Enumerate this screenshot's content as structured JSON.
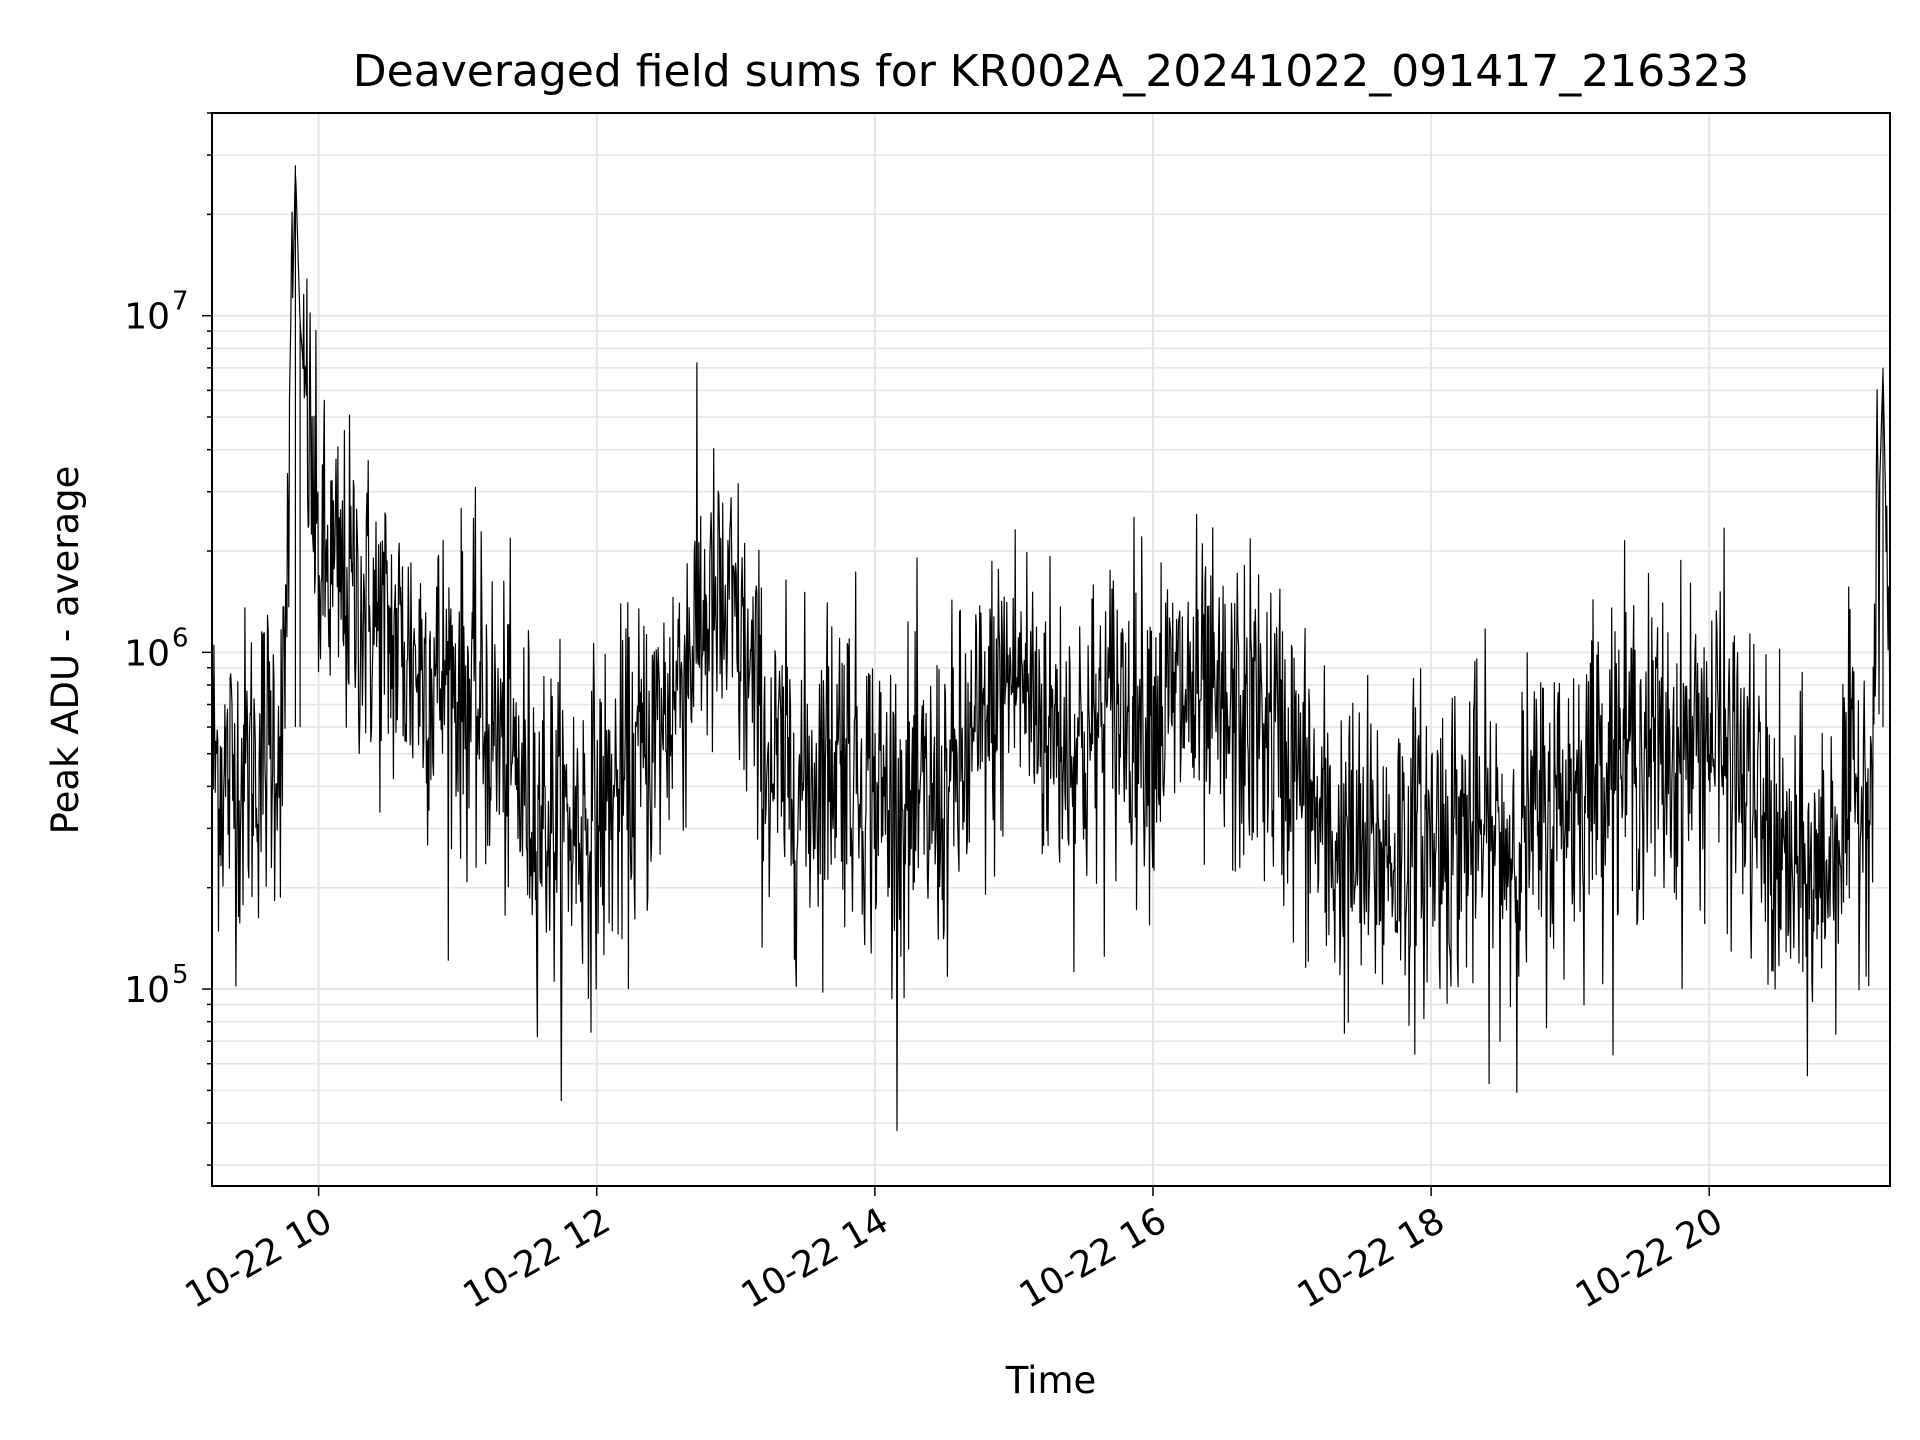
{
  "chart_data": {
    "type": "line",
    "title": "Deaveraged field sums for KR002A_20241022_091417_216323",
    "xlabel": "Time",
    "ylabel": "Peak ADU - average",
    "y_scale": "log",
    "x_range": [
      "10-22 09:14",
      "10-22 21:18"
    ],
    "ylim": [
      26000,
      40000000
    ],
    "x_tick_labels": [
      "10-22 10",
      "10-22 12",
      "10-22 14",
      "10-22 16",
      "10-22 18",
      "10-22 20"
    ],
    "y_ticks": [
      {
        "base": "10",
        "exp": "5",
        "value": 100000
      },
      {
        "base": "10",
        "exp": "6",
        "value": 1000000
      },
      {
        "base": "10",
        "exp": "7",
        "value": 10000000
      }
    ],
    "grid": true,
    "line_color": "#000000",
    "series": [
      {
        "points": [
          [
            "10-22 09:14",
            500000
          ],
          [
            "10-22 09:20",
            420000
          ],
          [
            "10-22 09:30",
            450000
          ],
          [
            "10-22 09:45",
            600000
          ],
          [
            "10-22 09:50",
            28000000
          ],
          [
            "10-22 09:52",
            9500000
          ],
          [
            "10-22 10:00",
            1800000
          ],
          [
            "10-22 10:15",
            1500000
          ],
          [
            "10-22 10:30",
            1100000
          ],
          [
            "10-22 10:45",
            900000
          ],
          [
            "10-22 11:00",
            800000
          ],
          [
            "10-22 11:15",
            600000
          ],
          [
            "10-22 11:30",
            380000
          ],
          [
            "10-22 11:45",
            300000
          ],
          [
            "10-22 12:00",
            320000
          ],
          [
            "10-22 12:15",
            420000
          ],
          [
            "10-22 12:30",
            650000
          ],
          [
            "10-22 12:45",
            1300000
          ],
          [
            "10-22 13:00",
            1200000
          ],
          [
            "10-22 13:15",
            450000
          ],
          [
            "10-22 13:30",
            400000
          ],
          [
            "10-22 13:45",
            550000
          ],
          [
            "10-22 14:00",
            380000
          ],
          [
            "10-22 14:15",
            330000
          ],
          [
            "10-22 14:30",
            360000
          ],
          [
            "10-22 14:45",
            550000
          ],
          [
            "10-22 15:00",
            900000
          ],
          [
            "10-22 15:15",
            600000
          ],
          [
            "10-22 15:30",
            520000
          ],
          [
            "10-22 15:45",
            700000
          ],
          [
            "10-22 16:00",
            650000
          ],
          [
            "10-22 16:15",
            750000
          ],
          [
            "10-22 16:30",
            600000
          ],
          [
            "10-22 16:45",
            650000
          ],
          [
            "10-22 17:00",
            480000
          ],
          [
            "10-22 17:15",
            270000
          ],
          [
            "10-22 17:30",
            240000
          ],
          [
            "10-22 17:45",
            260000
          ],
          [
            "10-22 18:00",
            280000
          ],
          [
            "10-22 18:15",
            300000
          ],
          [
            "10-22 18:30",
            260000
          ],
          [
            "10-22 18:45",
            300000
          ],
          [
            "10-22 19:00",
            380000
          ],
          [
            "10-22 19:15",
            500000
          ],
          [
            "10-22 19:30",
            520000
          ],
          [
            "10-22 19:45",
            480000
          ],
          [
            "10-22 20:00",
            600000
          ],
          [
            "10-22 20:15",
            420000
          ],
          [
            "10-22 20:30",
            230000
          ],
          [
            "10-22 20:45",
            200000
          ],
          [
            "10-22 21:00",
            350000
          ],
          [
            "10-22 21:10",
            450000
          ],
          [
            "10-22 21:15",
            7000000
          ],
          [
            "10-22 21:18",
            600000
          ]
        ]
      }
    ]
  }
}
